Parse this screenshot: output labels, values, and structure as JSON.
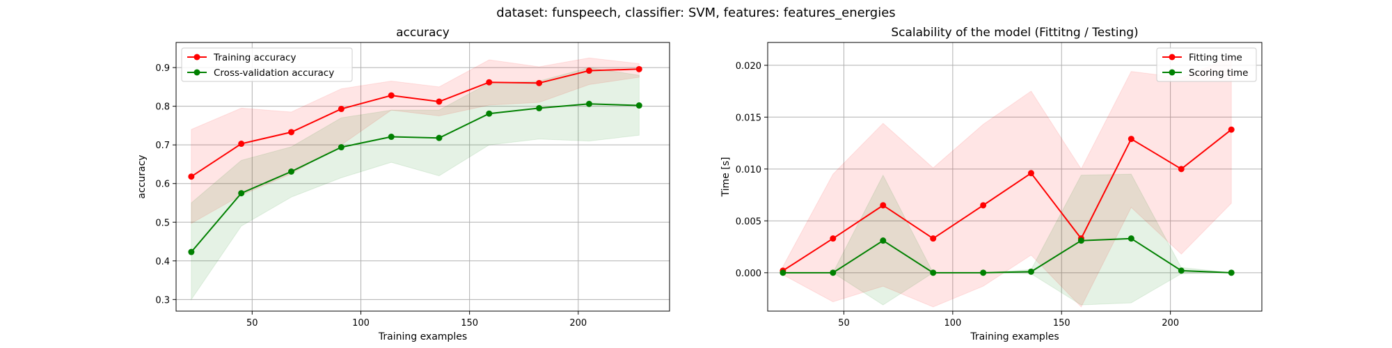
{
  "figure": {
    "suptitle": "dataset: funspeech, classifier: SVM, features: features_energies"
  },
  "chart_data": [
    {
      "type": "line",
      "title": "accuracy",
      "xlabel": "Training examples",
      "ylabel": "accuracy",
      "xlim": [
        15,
        242
      ],
      "ylim": [
        0.27,
        0.965
      ],
      "xticks": [
        50,
        100,
        150,
        200
      ],
      "yticks": [
        0.3,
        0.4,
        0.5,
        0.6,
        0.7,
        0.8,
        0.9
      ],
      "ytick_labels": [
        "0.3",
        "0.4",
        "0.5",
        "0.6",
        "0.7",
        "0.8",
        "0.9"
      ],
      "grid": true,
      "legend_position": "upper-left",
      "x": [
        22,
        45,
        68,
        91,
        114,
        136,
        159,
        182,
        205,
        228
      ],
      "series": [
        {
          "name": "Training accuracy",
          "color": "#ff0000",
          "values": [
            0.618,
            0.703,
            0.733,
            0.793,
            0.828,
            0.812,
            0.862,
            0.86,
            0.892,
            0.896
          ],
          "band_lower": [
            0.497,
            0.57,
            0.625,
            0.7,
            0.79,
            0.775,
            0.803,
            0.81,
            0.856,
            0.875
          ],
          "band_upper": [
            0.74,
            0.795,
            0.785,
            0.845,
            0.865,
            0.85,
            0.92,
            0.902,
            0.925,
            0.91
          ]
        },
        {
          "name": "Cross-validation accuracy",
          "color": "#008000",
          "values": [
            0.423,
            0.575,
            0.631,
            0.694,
            0.721,
            0.718,
            0.781,
            0.795,
            0.806,
            0.802
          ],
          "band_lower": [
            0.3,
            0.49,
            0.565,
            0.615,
            0.655,
            0.62,
            0.7,
            0.715,
            0.71,
            0.725
          ],
          "band_upper": [
            0.55,
            0.66,
            0.695,
            0.77,
            0.79,
            0.79,
            0.86,
            0.865,
            0.9,
            0.88
          ]
        }
      ]
    },
    {
      "type": "line",
      "title": "Scalability of the model (Fittitng / Testing)",
      "xlabel": "Training examples",
      "ylabel": "Time [s]",
      "xlim": [
        15,
        242
      ],
      "ylim": [
        -0.0037,
        0.0222
      ],
      "xticks": [
        50,
        100,
        150,
        200
      ],
      "yticks": [
        0.0,
        0.005,
        0.01,
        0.015,
        0.02
      ],
      "ytick_labels": [
        "0.000",
        "0.005",
        "0.010",
        "0.015",
        "0.020"
      ],
      "grid": true,
      "legend_position": "upper-right",
      "x": [
        22,
        45,
        68,
        91,
        114,
        136,
        159,
        182,
        205,
        228
      ],
      "series": [
        {
          "name": "Fitting time",
          "color": "#ff0000",
          "values": [
            0.0002,
            0.0033,
            0.0065,
            0.0033,
            0.0065,
            0.0096,
            0.0033,
            0.0129,
            0.01,
            0.0138
          ],
          "band_lower": [
            -0.0002,
            -0.0028,
            -0.0013,
            -0.0033,
            -0.0013,
            0.0017,
            -0.0033,
            0.0063,
            0.0018,
            0.0067
          ],
          "band_upper": [
            0.0006,
            0.0095,
            0.0144,
            0.0101,
            0.0143,
            0.0175,
            0.01,
            0.0194,
            0.0188,
            0.0208
          ]
        },
        {
          "name": "Scoring time",
          "color": "#008000",
          "values": [
            0.0,
            0.0,
            0.0031,
            0.0,
            0.0,
            0.0001,
            0.0031,
            0.0033,
            0.0002,
            0.0
          ],
          "band_lower": [
            0.0,
            0.0,
            -0.0031,
            0.0,
            0.0,
            -0.0001,
            -0.0031,
            -0.0029,
            -0.0001,
            0.0
          ],
          "band_upper": [
            0.0,
            0.0,
            0.0094,
            0.0,
            0.0,
            0.0003,
            0.0094,
            0.0095,
            0.0005,
            0.0
          ]
        }
      ]
    }
  ]
}
